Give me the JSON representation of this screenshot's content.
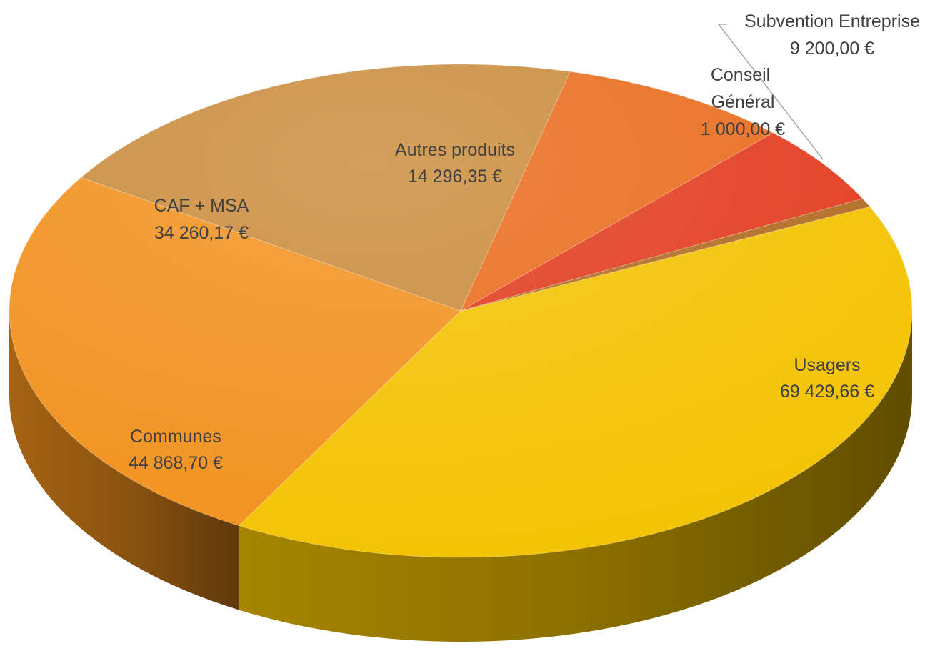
{
  "chart_data": {
    "type": "pie",
    "title": "",
    "currency": "€",
    "start_angle_deg": -25,
    "direction": "clockwise",
    "slices": [
      {
        "label": "Usagers",
        "value_text": "69 429,66 €",
        "value": 69429.66,
        "color": "#f3c200"
      },
      {
        "label": "Communes",
        "value_text": "44 868,70 €",
        "value": 44868.7,
        "color": "#f1901c"
      },
      {
        "label": "CAF + MSA",
        "value_text": "34 260,17 €",
        "value": 34260.17,
        "color": "#c98a3a"
      },
      {
        "label": "Autres produits",
        "value_text": "14 296,35 €",
        "value": 14296.35,
        "color": "#ea6a1a"
      },
      {
        "label": "Subvention Entreprise",
        "value_text": "9 200,00 €",
        "value": 9200.0,
        "color": "#e23a1c"
      },
      {
        "label": "Conseil Général",
        "value_text": "1 000,00 €",
        "value": 1000.0,
        "color": "#b06a1e"
      }
    ]
  }
}
